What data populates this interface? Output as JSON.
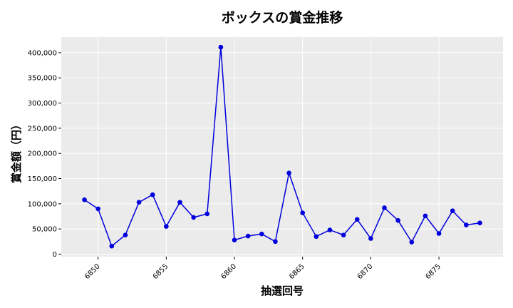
{
  "chart_data": {
    "type": "line",
    "title": "ボックスの賞金推移",
    "xlabel": "抽選回号",
    "ylabel": "賞金額（円）",
    "xlim": [
      6847.3,
      6879.7
    ],
    "ylim": [
      -5000,
      431000
    ],
    "x_ticks": [
      6850,
      6855,
      6860,
      6865,
      6870,
      6875
    ],
    "x_tick_labels": [
      "6850",
      "6855",
      "6860",
      "6865",
      "6870",
      "6875"
    ],
    "y_ticks": [
      0,
      50000,
      100000,
      150000,
      200000,
      250000,
      300000,
      350000,
      400000
    ],
    "y_tick_labels": [
      "0",
      "50,000",
      "100,000",
      "150,000",
      "200,000",
      "250,000",
      "300,000",
      "350,000",
      "400,000"
    ],
    "grid": true,
    "series": [
      {
        "color": "#0000dd",
        "x": [
          6849,
          6850,
          6851,
          6852,
          6853,
          6854,
          6855,
          6856,
          6857,
          6858,
          6859,
          6860,
          6861,
          6862,
          6863,
          6864,
          6865,
          6866,
          6867,
          6868,
          6869,
          6870,
          6871,
          6872,
          6873,
          6874,
          6875,
          6876,
          6877,
          6878
        ],
        "values": [
          108000,
          90000,
          16000,
          38000,
          103000,
          118000,
          55000,
          103000,
          73000,
          80000,
          411000,
          28000,
          36000,
          40000,
          25000,
          161000,
          82000,
          35000,
          48000,
          38000,
          69000,
          31000,
          92000,
          67000,
          24000,
          76000,
          41000,
          86000,
          58000,
          62000
        ]
      }
    ]
  }
}
